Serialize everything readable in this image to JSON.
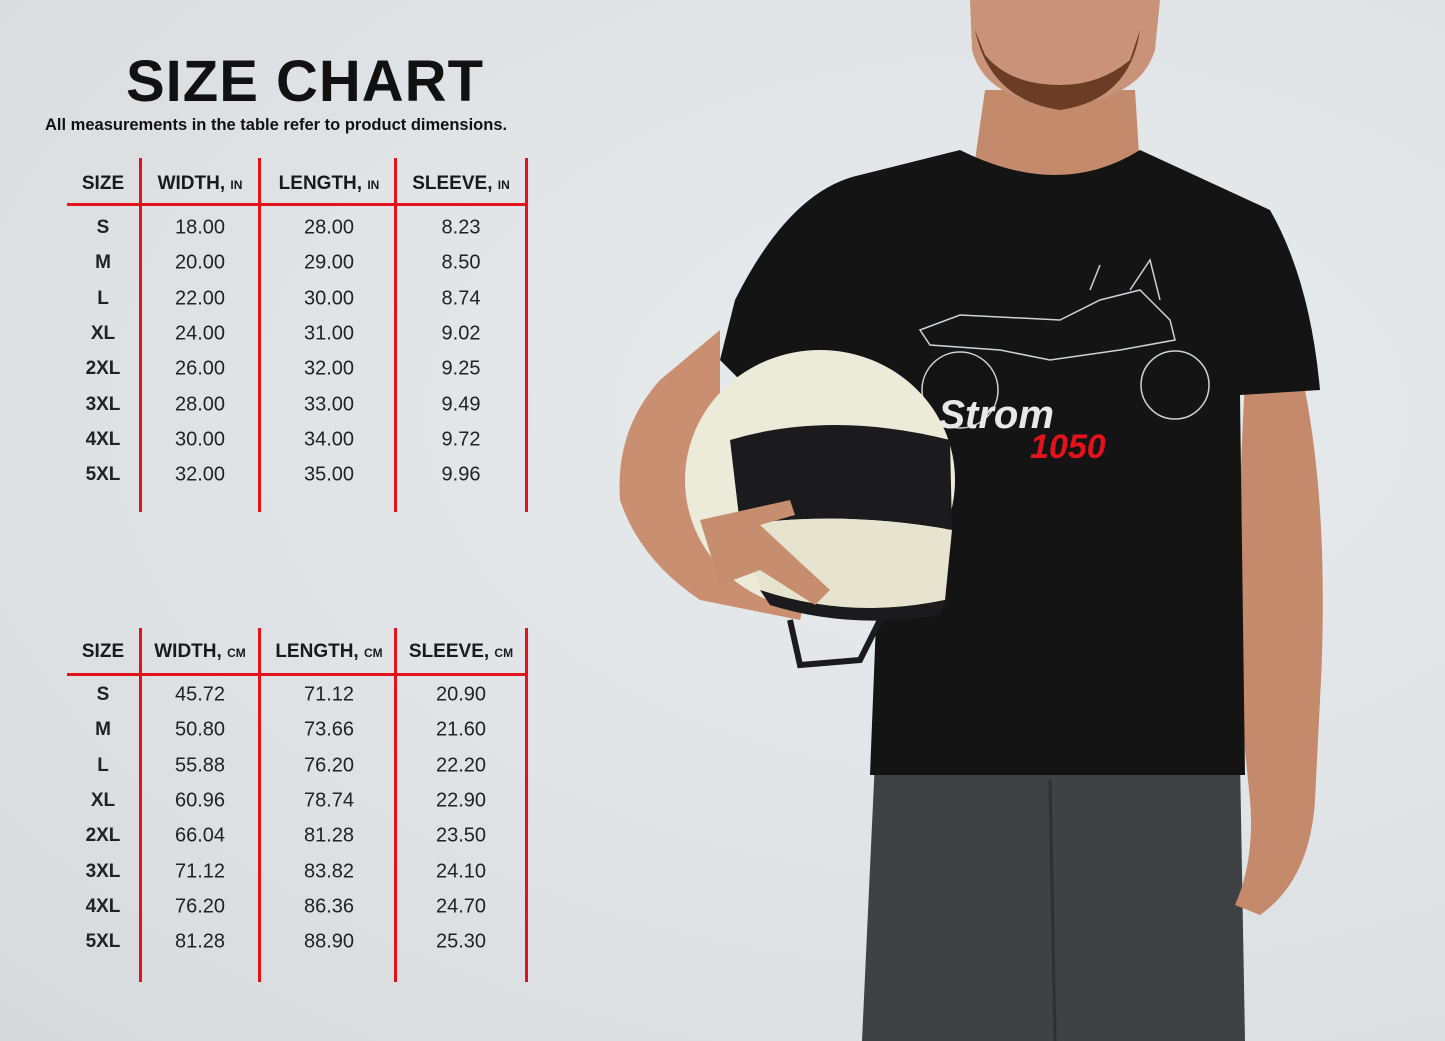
{
  "header": {
    "title": "SIZE CHART",
    "subtitle": "All measurements in the table refer to product dimensions."
  },
  "colors": {
    "accent_red": "#e4121b",
    "text": "#111111",
    "background": "#e2e5e7",
    "shirt": "#141414"
  },
  "tables": [
    {
      "headers": [
        {
          "label": "SIZE",
          "unit": ""
        },
        {
          "label": "WIDTH,",
          "unit": "IN"
        },
        {
          "label": "LENGTH,",
          "unit": "IN"
        },
        {
          "label": "SLEEVE,",
          "unit": "IN"
        }
      ],
      "rows": [
        [
          "S",
          "18.00",
          "28.00",
          "8.23"
        ],
        [
          "M",
          "20.00",
          "29.00",
          "8.50"
        ],
        [
          "L",
          "22.00",
          "30.00",
          "8.74"
        ],
        [
          "XL",
          "24.00",
          "31.00",
          "9.02"
        ],
        [
          "2XL",
          "26.00",
          "32.00",
          "9.25"
        ],
        [
          "3XL",
          "28.00",
          "33.00",
          "9.49"
        ],
        [
          "4XL",
          "30.00",
          "34.00",
          "9.72"
        ],
        [
          "5XL",
          "32.00",
          "35.00",
          "9.96"
        ]
      ]
    },
    {
      "headers": [
        {
          "label": "SIZE",
          "unit": ""
        },
        {
          "label": "WIDTH,",
          "unit": "CM"
        },
        {
          "label": "LENGTH,",
          "unit": "CM"
        },
        {
          "label": "SLEEVE,",
          "unit": "CM"
        }
      ],
      "rows": [
        [
          "S",
          "45.72",
          "71.12",
          "20.90"
        ],
        [
          "M",
          "50.80",
          "73.66",
          "21.60"
        ],
        [
          "L",
          "55.88",
          "76.20",
          "22.20"
        ],
        [
          "XL",
          "60.96",
          "78.74",
          "22.90"
        ],
        [
          "2XL",
          "66.04",
          "81.28",
          "23.50"
        ],
        [
          "3XL",
          "71.12",
          "83.82",
          "24.10"
        ],
        [
          "4XL",
          "76.20",
          "86.36",
          "24.70"
        ],
        [
          "5XL",
          "81.28",
          "88.90",
          "25.30"
        ]
      ]
    }
  ],
  "shirt_print": {
    "name": "-Strom",
    "model": "1050"
  }
}
